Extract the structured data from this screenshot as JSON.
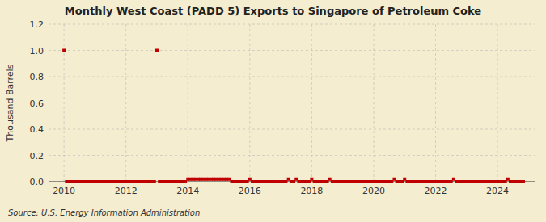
{
  "chart_data": {
    "type": "scatter",
    "title": "Monthly West Coast (PADD 5) Exports to Singapore of Petroleum Coke",
    "ylabel": "Thousand Barrels",
    "source": "Source: U.S. Energy Information Administration",
    "color": "#c00000",
    "marker": "square",
    "grid": true,
    "xlim": [
      2009.5,
      2025.2
    ],
    "ylim": [
      0.0,
      1.2
    ],
    "xticks": [
      2010,
      2012,
      2014,
      2016,
      2018,
      2020,
      2022,
      2024
    ],
    "yticks": [
      {
        "value": 0.0,
        "label": "0.0"
      },
      0.2,
      0.4,
      0.6,
      0.8,
      {
        "value": 1.0,
        "label": "1.0"
      },
      1.2
    ],
    "x": [
      2010.0,
      2010.0833333333333,
      2010.1666666666667,
      2010.25,
      2010.3333333333333,
      2010.4166666666667,
      2010.5,
      2010.5833333333333,
      2010.6666666666667,
      2010.75,
      2010.8333333333333,
      2010.9166666666667,
      2011.0,
      2011.0833333333333,
      2011.1666666666667,
      2011.25,
      2011.3333333333333,
      2011.4166666666667,
      2011.5,
      2011.5833333333333,
      2011.6666666666667,
      2011.75,
      2011.8333333333333,
      2011.9166666666667,
      2012.0,
      2012.0833333333333,
      2012.1666666666667,
      2012.25,
      2012.3333333333333,
      2012.4166666666667,
      2012.5,
      2012.5833333333333,
      2012.6666666666667,
      2012.75,
      2012.8333333333333,
      2012.9166666666667,
      2013.0,
      2013.0833333333333,
      2013.1666666666667,
      2013.25,
      2013.3333333333333,
      2013.4166666666667,
      2013.5,
      2013.5833333333333,
      2013.6666666666667,
      2013.75,
      2013.8333333333333,
      2013.9166666666667,
      2014.0,
      2014.0833333333333,
      2014.1666666666667,
      2014.25,
      2014.3333333333333,
      2014.4166666666667,
      2014.5,
      2014.5833333333333,
      2014.6666666666667,
      2014.75,
      2014.8333333333333,
      2014.9166666666667,
      2015.0,
      2015.0833333333333,
      2015.1666666666667,
      2015.25,
      2015.3333333333333,
      2015.4166666666667,
      2015.5,
      2015.5833333333333,
      2015.6666666666667,
      2015.75,
      2015.8333333333333,
      2015.9166666666667,
      2016.0,
      2016.0833333333333,
      2016.1666666666667,
      2016.25,
      2016.3333333333333,
      2016.4166666666667,
      2016.5,
      2016.5833333333333,
      2016.6666666666667,
      2016.75,
      2016.8333333333333,
      2016.9166666666667,
      2017.0,
      2017.0833333333333,
      2017.1666666666667,
      2017.25,
      2017.3333333333333,
      2017.4166666666667,
      2017.5,
      2017.5833333333333,
      2017.6666666666667,
      2017.75,
      2017.8333333333333,
      2017.9166666666667,
      2018.0,
      2018.0833333333333,
      2018.1666666666667,
      2018.25,
      2018.3333333333333,
      2018.4166666666667,
      2018.5,
      2018.5833333333333,
      2018.6666666666667,
      2018.75,
      2018.8333333333333,
      2018.9166666666667,
      2019.0,
      2019.0833333333333,
      2019.1666666666667,
      2019.25,
      2019.3333333333333,
      2019.4166666666667,
      2019.5,
      2019.5833333333333,
      2019.6666666666667,
      2019.75,
      2019.8333333333333,
      2019.9166666666667,
      2020.0,
      2020.0833333333333,
      2020.1666666666667,
      2020.25,
      2020.3333333333333,
      2020.4166666666667,
      2020.5,
      2020.5833333333333,
      2020.6666666666667,
      2020.75,
      2020.8333333333333,
      2020.9166666666667,
      2021.0,
      2021.0833333333333,
      2021.1666666666667,
      2021.25,
      2021.3333333333333,
      2021.4166666666667,
      2021.5,
      2021.5833333333333,
      2021.6666666666667,
      2021.75,
      2021.8333333333333,
      2021.9166666666667,
      2022.0,
      2022.0833333333333,
      2022.1666666666667,
      2022.25,
      2022.3333333333333,
      2022.4166666666667,
      2022.5,
      2022.5833333333333,
      2022.6666666666667,
      2022.75,
      2022.8333333333333,
      2022.9166666666667,
      2023.0,
      2023.0833333333333,
      2023.1666666666667,
      2023.25,
      2023.3333333333333,
      2023.4166666666667,
      2023.5,
      2023.5833333333333,
      2023.6666666666667,
      2023.75,
      2023.8333333333333,
      2023.9166666666667,
      2024.0,
      2024.0833333333333,
      2024.1666666666667,
      2024.25,
      2024.3333333333333,
      2024.4166666666667,
      2024.5,
      2024.5833333333333,
      2024.6666666666667,
      2024.75,
      2024.8333333333333
    ],
    "values": [
      1.0,
      0.0,
      0.0,
      0.0,
      0.0,
      0.0,
      0.0,
      0.0,
      0.0,
      0.0,
      0.0,
      0.0,
      0.0,
      0.0,
      0.0,
      0.0,
      0.0,
      0.0,
      0.0,
      0.0,
      0.0,
      0.0,
      0.0,
      0.0,
      0.0,
      0.0,
      0.0,
      0.0,
      0.0,
      0.0,
      0.0,
      0.0,
      0.0,
      0.0,
      0.0,
      0.0,
      1.0,
      0.0,
      0.0,
      0.0,
      0.0,
      0.0,
      0.0,
      0.0,
      0.0,
      0.0,
      0.0,
      0.0,
      0.02,
      0.02,
      0.02,
      0.02,
      0.02,
      0.02,
      0.02,
      0.02,
      0.02,
      0.02,
      0.02,
      0.02,
      0.02,
      0.02,
      0.02,
      0.02,
      0.02,
      0.0,
      0.0,
      0.0,
      0.0,
      0.0,
      0.0,
      0.0,
      0.02,
      0.0,
      0.0,
      0.0,
      0.0,
      0.0,
      0.0,
      0.0,
      0.0,
      0.0,
      0.0,
      0.0,
      0.0,
      0.0,
      0.0,
      0.02,
      0.0,
      0.0,
      0.02,
      0.0,
      0.0,
      0.0,
      0.0,
      0.0,
      0.02,
      0.0,
      0.0,
      0.0,
      0.0,
      0.0,
      0.0,
      0.02,
      0.0,
      0.0,
      0.0,
      0.0,
      0.0,
      0.0,
      0.0,
      0.0,
      0.0,
      0.0,
      0.0,
      0.0,
      0.0,
      0.0,
      0.0,
      0.0,
      0.0,
      0.0,
      0.0,
      0.0,
      0.0,
      0.0,
      0.0,
      0.0,
      0.02,
      0.0,
      0.0,
      0.0,
      0.02,
      0.0,
      0.0,
      0.0,
      0.0,
      0.0,
      0.0,
      0.0,
      0.0,
      0.0,
      0.0,
      0.0,
      0.0,
      0.0,
      0.0,
      0.0,
      0.0,
      0.0,
      0.0,
      0.02,
      0.0,
      0.0,
      0.0,
      0.0,
      0.0,
      0.0,
      0.0,
      0.0,
      0.0,
      0.0,
      0.0,
      0.0,
      0.0,
      0.0,
      0.0,
      0.0,
      0.0,
      0.0,
      0.0,
      0.0,
      0.02,
      0.0,
      0.0,
      0.0,
      0.0,
      0.0,
      0.0
    ]
  }
}
